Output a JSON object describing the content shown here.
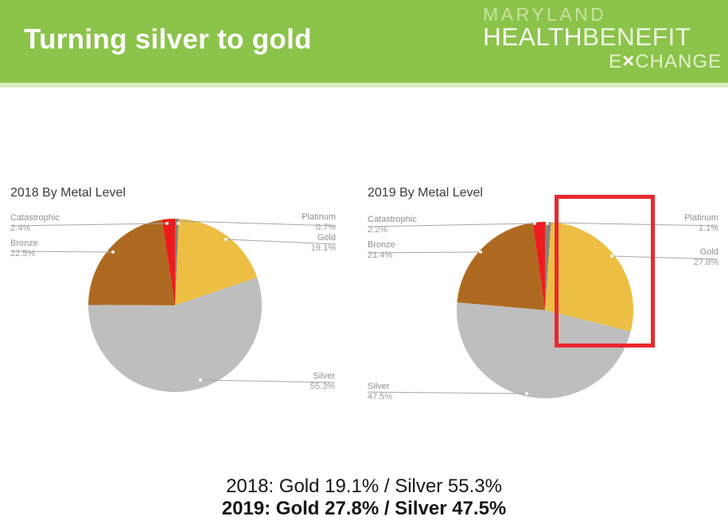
{
  "slide": {
    "title": "Turning silver to gold",
    "header_color": "#8cc34b"
  },
  "logo": {
    "line1": "MARYLAND",
    "health": "HEALTH",
    "benefit": "BENEFIT",
    "exchange_pre": "E",
    "exchange_x": "×",
    "exchange_post": "CHANGE"
  },
  "annotation": {
    "highlight_box_color": "#e8282c"
  },
  "summary": {
    "line_2018": "2018: Gold 19.1% / Silver 55.3%",
    "line_2019": "2019: Gold 27.8% / Silver 47.5%"
  },
  "chart_data": [
    {
      "type": "pie",
      "title": "2018 By Metal Level",
      "unit": "%",
      "start": "12 o'clock",
      "direction": "clockwise",
      "legend_position": "callout-labels",
      "slices": [
        {
          "label": "Platinum",
          "value": 0.7,
          "pct": "0.7%",
          "color": "#85827a"
        },
        {
          "label": "Gold",
          "value": 19.1,
          "pct": "19.1%",
          "color": "#edbe44"
        },
        {
          "label": "Silver",
          "value": 55.3,
          "pct": "55.3%",
          "color": "#bfbebe"
        },
        {
          "label": "Bronze",
          "value": 22.5,
          "pct": "22.5%",
          "color": "#ae6a21"
        },
        {
          "label": "Catastrophic",
          "value": 2.4,
          "pct": "2.4%",
          "color": "#ee1b1e"
        }
      ]
    },
    {
      "type": "pie",
      "title": "2019 By Metal Level",
      "unit": "%",
      "start": "12 o'clock",
      "direction": "clockwise",
      "legend_position": "callout-labels",
      "slices": [
        {
          "label": "Platinum",
          "value": 1.1,
          "pct": "1.1%",
          "color": "#85827a"
        },
        {
          "label": "Gold",
          "value": 27.8,
          "pct": "27.8%",
          "color": "#edbe44"
        },
        {
          "label": "Silver",
          "value": 47.5,
          "pct": "47.5%",
          "color": "#bfbebe"
        },
        {
          "label": "Bronze",
          "value": 21.4,
          "pct": "21.4%",
          "color": "#ae6a21"
        },
        {
          "label": "Catastrophic",
          "value": 2.2,
          "pct": "2.2%",
          "color": "#ee1b1e"
        }
      ]
    }
  ]
}
